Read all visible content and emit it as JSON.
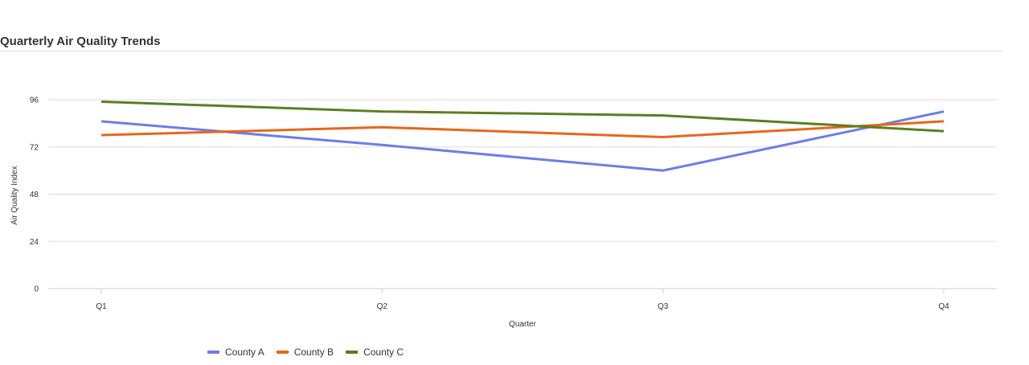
{
  "chart_data": {
    "type": "line",
    "title": "Quarterly Air Quality Trends",
    "xlabel": "Quarter",
    "ylabel": "Air Quality Index",
    "categories": [
      "Q1",
      "Q2",
      "Q3",
      "Q4"
    ],
    "ylim": [
      0,
      96
    ],
    "yticks": [
      0,
      24,
      48,
      72,
      96
    ],
    "grid": true,
    "legend_position": "bottom-left",
    "series": [
      {
        "name": "County A",
        "color": "#6b7ee6",
        "values": [
          85,
          73,
          60,
          90
        ]
      },
      {
        "name": "County B",
        "color": "#e8671a",
        "values": [
          78,
          82,
          77,
          85
        ]
      },
      {
        "name": "County C",
        "color": "#5a7f20",
        "values": [
          95,
          90,
          88,
          80
        ]
      }
    ]
  }
}
